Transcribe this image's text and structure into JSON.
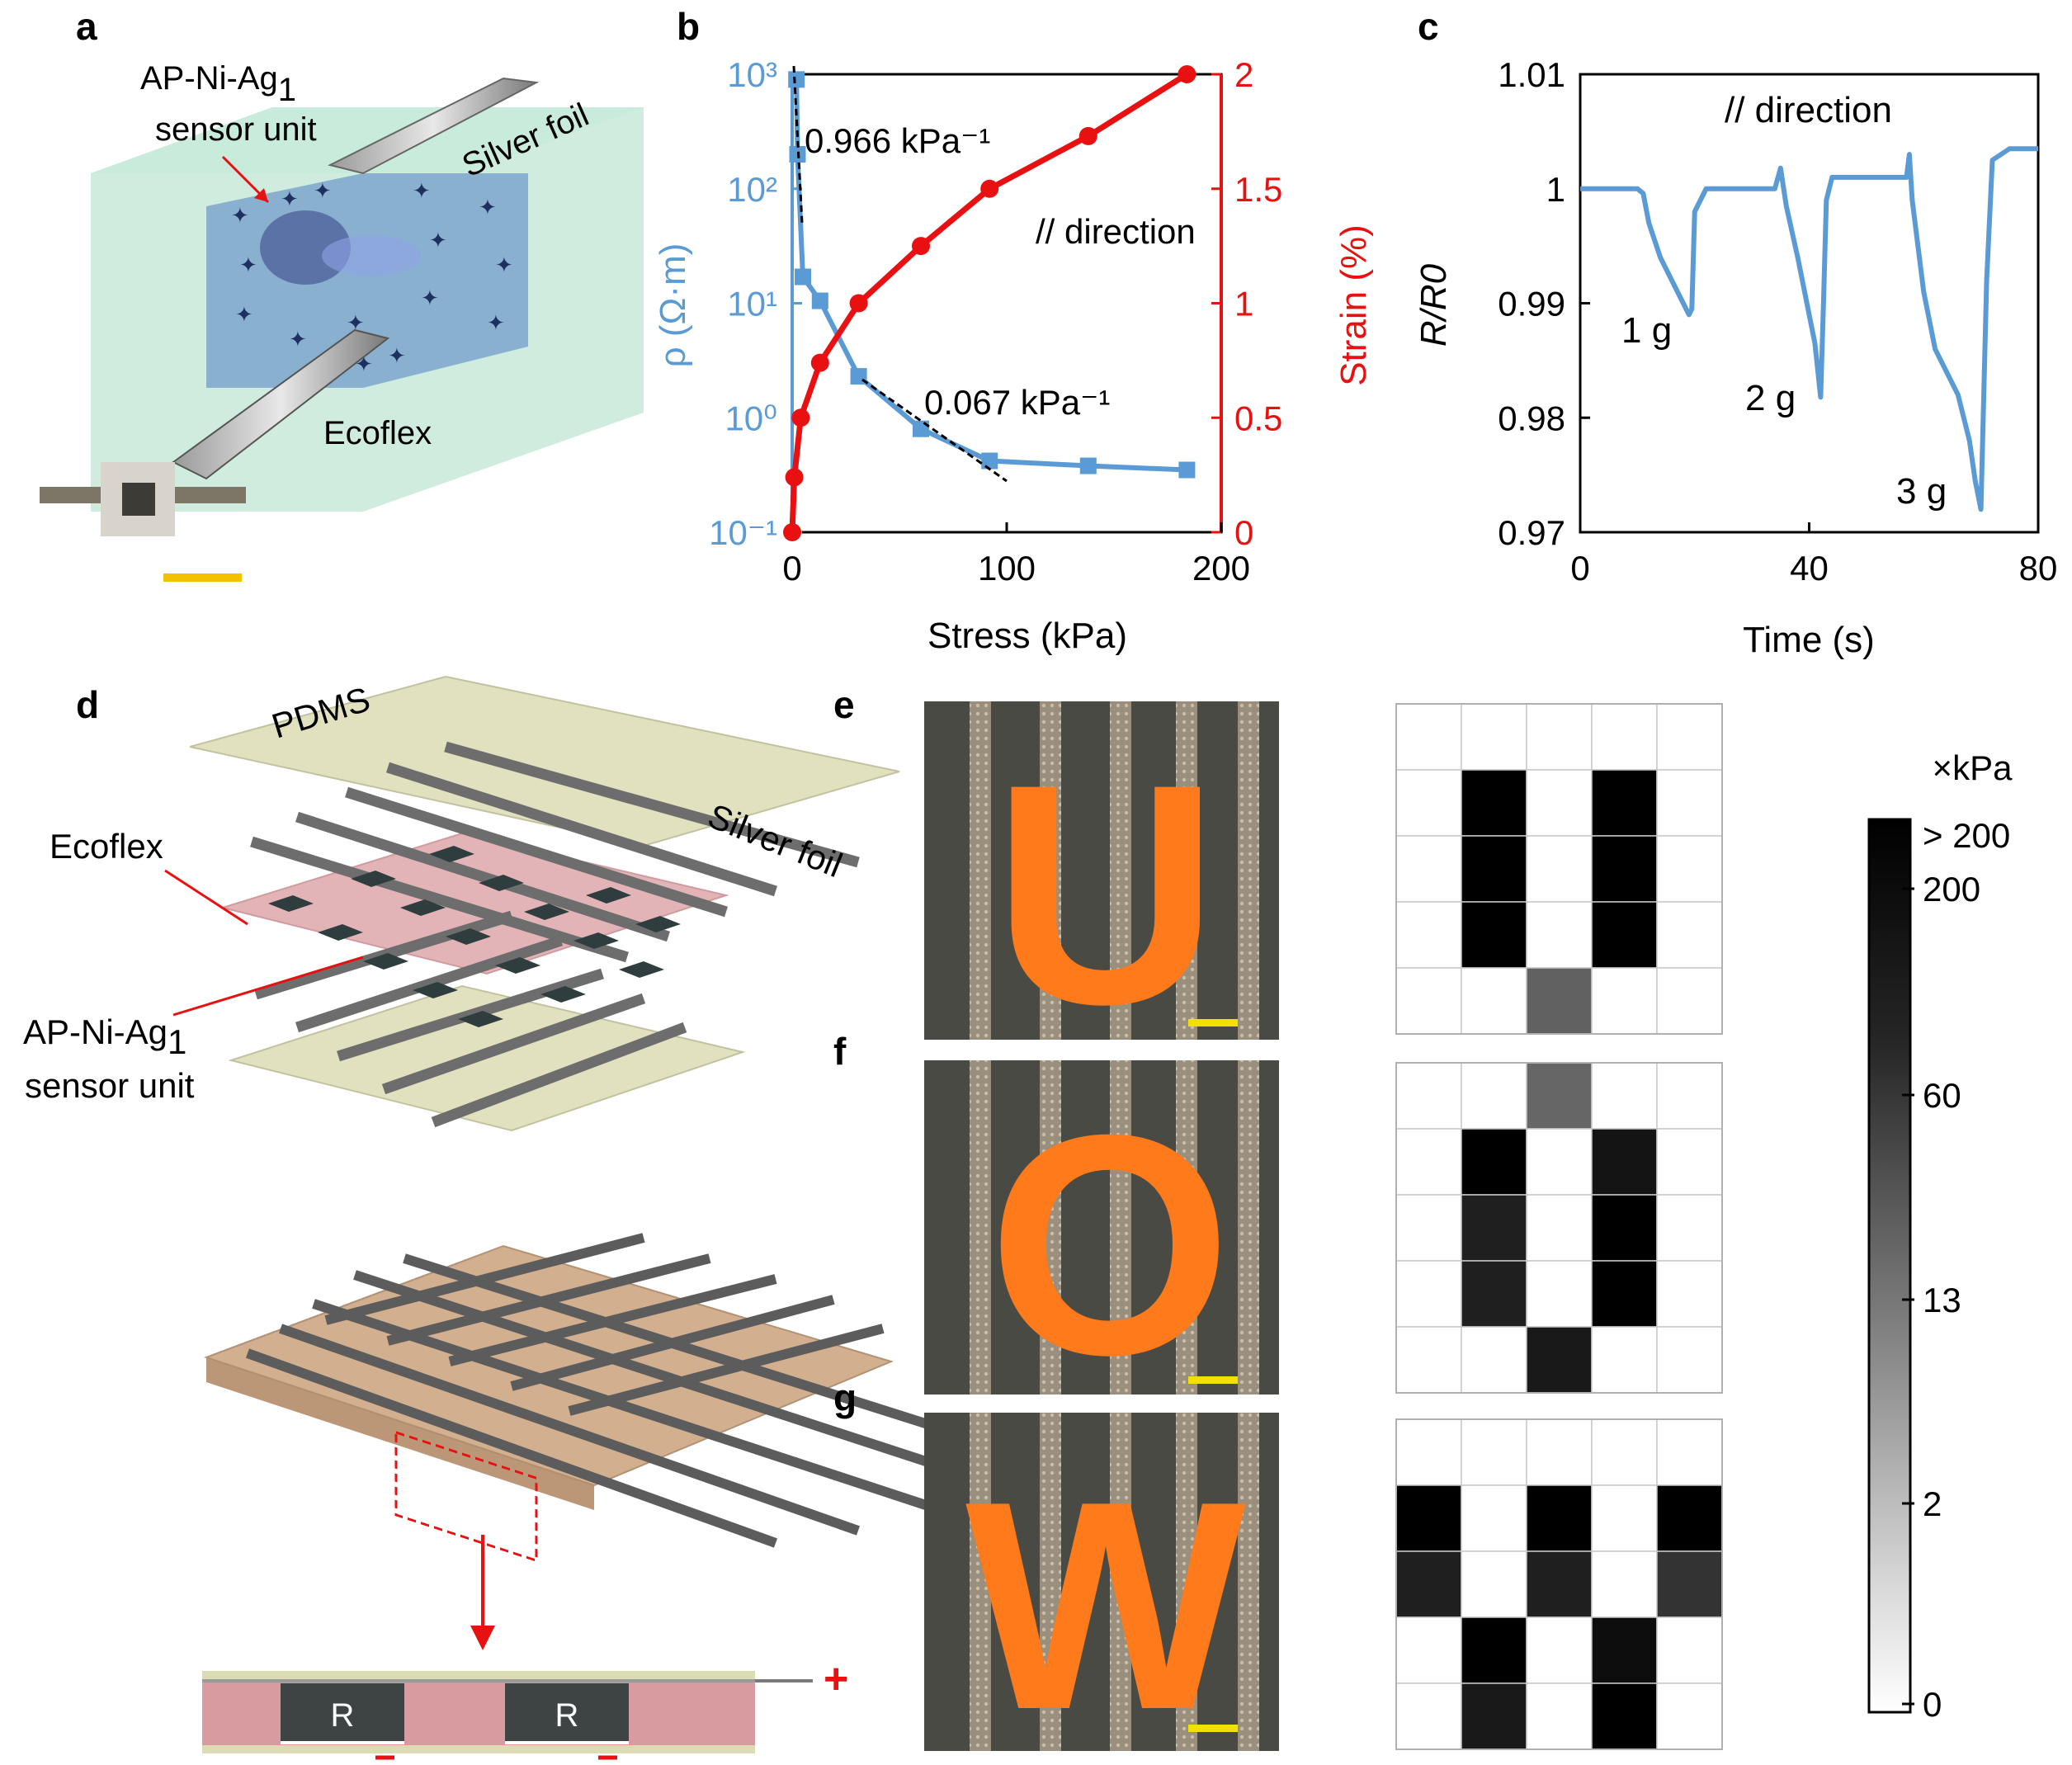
{
  "panels": {
    "a": {
      "letter": "a",
      "sensor_label": "AP-Ni-Ag",
      "sensor_sub": "1",
      "sensor_label2": "sensor unit",
      "silver_label": "Silver foil",
      "ecoflex_label": "Ecoflex"
    },
    "b": {
      "letter": "b"
    },
    "c": {
      "letter": "c"
    },
    "d": {
      "letter": "d",
      "pdms": "PDMS",
      "ecoflex": "Ecoflex",
      "silver": "Silver foil",
      "sensor_line1": "AP-Ni-Ag",
      "sensor_sub": "1",
      "sensor_line2": "sensor unit",
      "r1": "R",
      "r2": "R",
      "plus": "+"
    },
    "e": {
      "letter": "e",
      "photo_letter": "U"
    },
    "f": {
      "letter": "f",
      "photo_letter": "O"
    },
    "g": {
      "letter": "g",
      "photo_letter": "W"
    },
    "colorbar": {
      "unit": "×kPa",
      "ticks": [
        "> 200",
        "200",
        "60",
        "13",
        "2",
        "0"
      ]
    }
  },
  "chart_data": [
    {
      "id": "b",
      "type": "line",
      "title": "",
      "xlabel": "Stress (kPa)",
      "ylabel_left": "ρ (Ω·m)",
      "ylabel_right": "Strain (%)",
      "xlim": [
        0,
        200
      ],
      "xticks": [
        "0",
        "100",
        "200"
      ],
      "ylim_left_log10": [
        -1,
        3
      ],
      "yticks_left": [
        "10³",
        "10²",
        "10¹",
        "10⁰",
        "10⁻¹"
      ],
      "ylim_right": [
        0,
        2
      ],
      "yticks_right": [
        "2",
        "1.5",
        "1",
        "0.5",
        "0"
      ],
      "annotations": [
        "0.966  kPa⁻¹",
        "0.067  kPa⁻¹",
        "// direction"
      ],
      "series": [
        {
          "name": "ρ",
          "axis": "left",
          "color": "#5b9bd5",
          "marker": "square",
          "x": [
            2,
            2.5,
            5,
            13,
            31,
            60,
            92,
            138,
            184
          ],
          "y": [
            900,
            200,
            17,
            10.5,
            2.3,
            0.8,
            0.42,
            0.38,
            0.35
          ]
        },
        {
          "name": "Strain",
          "axis": "right",
          "color": "#e81010",
          "marker": "circle",
          "x": [
            0,
            1,
            4,
            13,
            31,
            60,
            92,
            138,
            184
          ],
          "y": [
            0,
            0.24,
            0.5,
            0.74,
            1.0,
            1.25,
            1.5,
            1.73,
            2.0
          ]
        }
      ]
    },
    {
      "id": "c",
      "type": "line",
      "title": "",
      "xlabel": "Time (s)",
      "ylabel": "R/R0",
      "xlim": [
        0,
        80
      ],
      "xticks": [
        "0",
        "40",
        "80"
      ],
      "ylim": [
        0.97,
        1.01
      ],
      "yticks": [
        "1.01",
        "1",
        "0.99",
        "0.98",
        "0.97"
      ],
      "annotations": [
        "// direction",
        "1 g",
        "2 g",
        "3 g"
      ],
      "series": [
        {
          "name": "R/R0",
          "color": "#5b9bd5",
          "x": [
            0,
            5,
            10,
            11,
            12,
            14,
            16,
            18,
            19,
            19.5,
            20,
            22,
            25,
            30,
            34,
            35,
            36,
            38,
            40,
            41,
            42,
            42.5,
            43,
            44,
            47,
            52,
            57,
            57.5,
            58,
            60,
            62,
            64,
            66,
            68,
            69,
            70,
            71,
            72,
            75,
            78,
            80
          ],
          "y": [
            1.0,
            1.0,
            1.0,
            0.9996,
            0.997,
            0.994,
            0.992,
            0.99,
            0.989,
            0.9895,
            0.998,
            1.0,
            1.0,
            1.0,
            1.0,
            1.0018,
            0.9985,
            0.994,
            0.989,
            0.9865,
            0.9818,
            0.99,
            0.999,
            1.001,
            1.001,
            1.001,
            1.001,
            1.003,
            0.999,
            0.991,
            0.986,
            0.984,
            0.982,
            0.978,
            0.9745,
            0.972,
            0.992,
            1.0025,
            1.0035,
            1.0035,
            1.0035
          ]
        }
      ]
    },
    {
      "id": "e",
      "type": "heatmap",
      "title": "U",
      "rows": 5,
      "cols": 5,
      "values": [
        [
          0,
          0,
          0,
          0,
          0
        ],
        [
          0,
          1,
          0,
          1,
          0
        ],
        [
          0,
          1,
          0,
          1,
          0
        ],
        [
          0,
          1,
          0,
          1,
          0
        ],
        [
          0,
          0,
          0.62,
          0,
          0
        ]
      ]
    },
    {
      "id": "f",
      "type": "heatmap",
      "title": "O",
      "rows": 5,
      "cols": 5,
      "values": [
        [
          0,
          0,
          0.6,
          0,
          0
        ],
        [
          0,
          1,
          0,
          0.92,
          0
        ],
        [
          0,
          0.88,
          0,
          1,
          0
        ],
        [
          0,
          0.88,
          0,
          1,
          0
        ],
        [
          0,
          0,
          0.9,
          0,
          0
        ]
      ]
    },
    {
      "id": "g",
      "type": "heatmap",
      "title": "W",
      "rows": 5,
      "cols": 5,
      "values": [
        [
          0,
          0,
          0,
          0,
          0
        ],
        [
          1,
          0,
          1,
          0,
          1
        ],
        [
          0.88,
          0,
          0.88,
          0,
          0.8
        ],
        [
          0,
          1,
          0,
          0.95,
          0
        ],
        [
          0,
          0.9,
          0,
          1,
          0
        ]
      ]
    }
  ],
  "colors": {
    "blue": "#5b9bd5",
    "red": "#e81010",
    "orange": "#ff7a1a",
    "yellow_bar": "#f2c200"
  }
}
